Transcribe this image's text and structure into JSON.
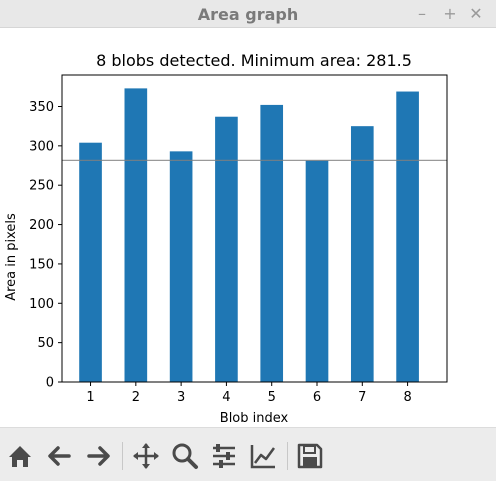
{
  "window": {
    "title": "Area graph",
    "minimize_icon": "minimize-icon",
    "maximize_icon": "maximize-icon",
    "close_icon": "close-icon"
  },
  "chart_data": {
    "type": "bar",
    "title": "8 blobs detected. Minimum area: 281.5",
    "xlabel": "Blob index",
    "ylabel": "Area in pixels",
    "categories": [
      "1",
      "2",
      "3",
      "4",
      "5",
      "6",
      "7",
      "8"
    ],
    "values": [
      304,
      373,
      293,
      337,
      352,
      281.5,
      325,
      369
    ],
    "ylim": [
      0,
      390
    ],
    "yticks": [
      0,
      50,
      100,
      150,
      200,
      250,
      300,
      350
    ],
    "reference_line": 281.5,
    "bar_color": "#1f77b4",
    "reference_line_color": "#808080",
    "grid": false
  },
  "toolbar": {
    "icons": [
      "home-icon",
      "back-icon",
      "forward-icon",
      "pan-icon",
      "zoom-icon",
      "configure-subplots-icon",
      "edit-axes-icon",
      "save-icon"
    ],
    "icon_color": "#4a4a4a"
  }
}
